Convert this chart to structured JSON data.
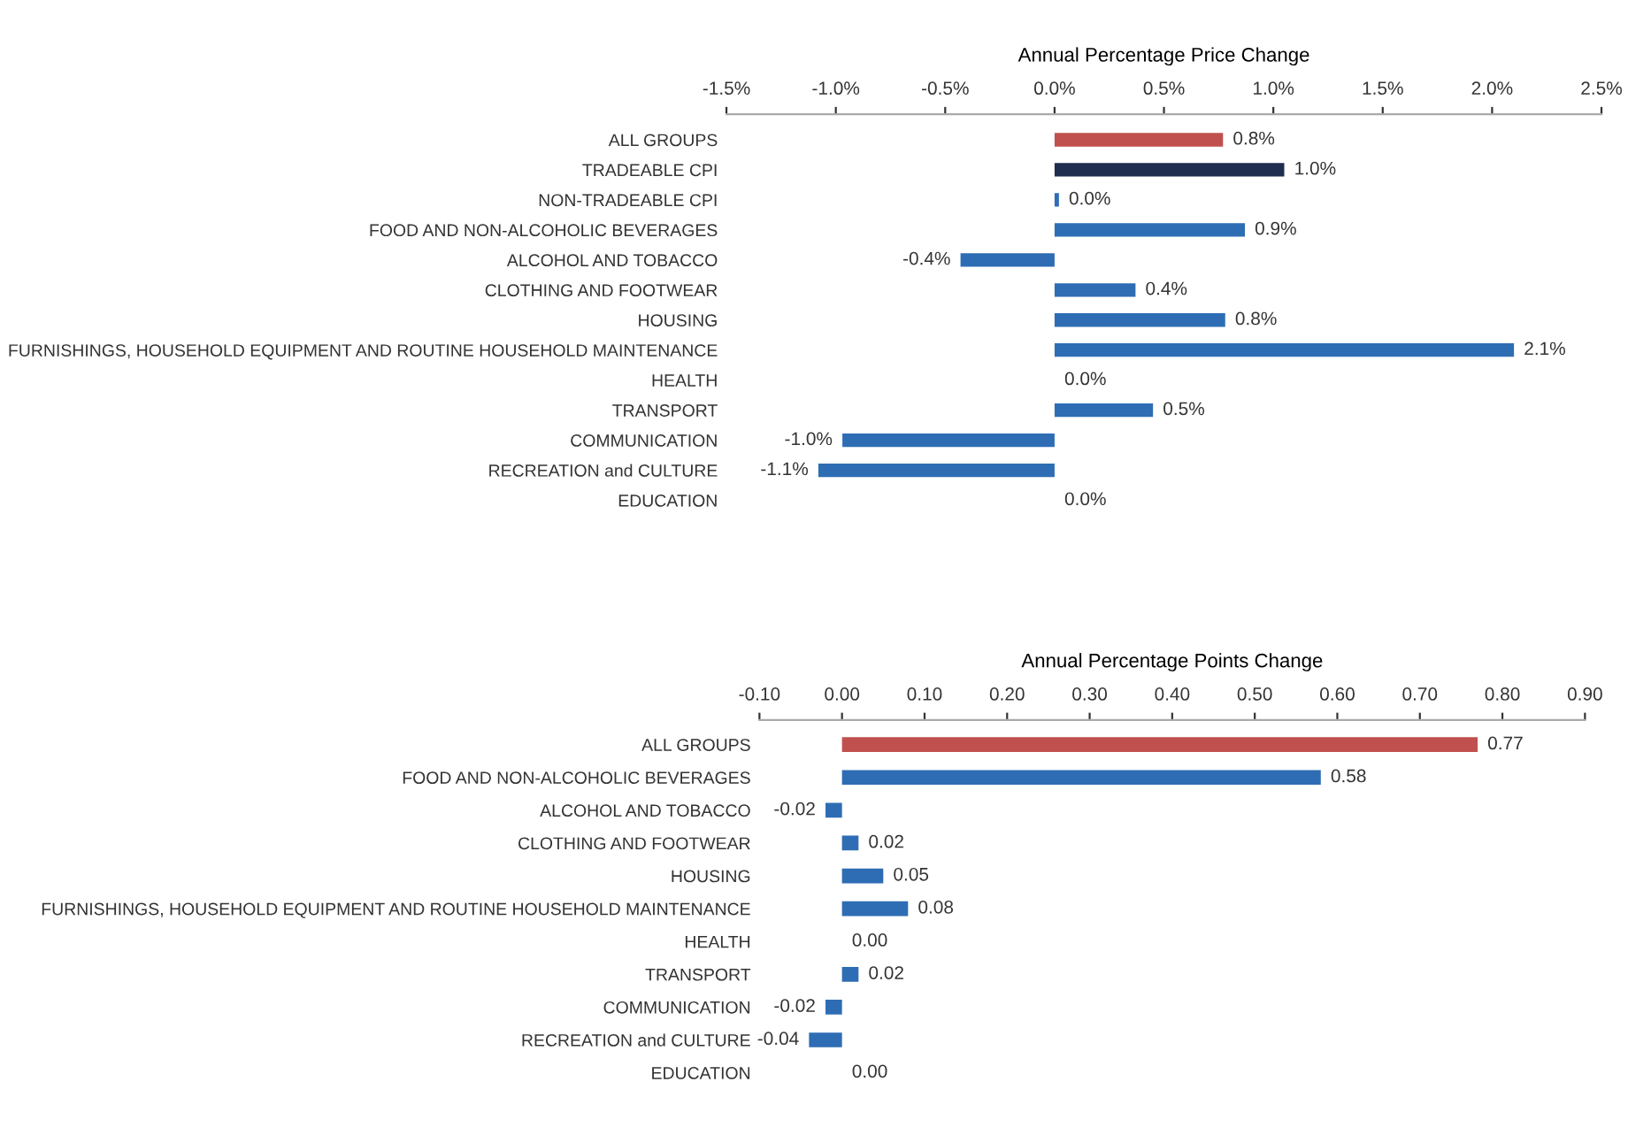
{
  "chart_data": [
    {
      "type": "bar",
      "orientation": "horizontal",
      "xlabel": "Annual Percentage Price Change",
      "categories": [
        "ALL GROUPS",
        "TRADEABLE CPI",
        "NON-TRADEABLE CPI",
        "FOOD AND NON-ALCOHOLIC BEVERAGES",
        "ALCOHOL AND TOBACCO",
        "CLOTHING AND FOOTWEAR",
        "HOUSING",
        "FURNISHINGS, HOUSEHOLD EQUIPMENT AND ROUTINE HOUSEHOLD MAINTENANCE",
        "HEALTH",
        "TRANSPORT",
        "COMMUNICATION",
        "RECREATION and CULTURE",
        "EDUCATION"
      ],
      "values": [
        0.77,
        1.05,
        0.02,
        0.87,
        -0.43,
        0.37,
        0.78,
        2.1,
        0.0,
        0.45,
        -0.97,
        -1.08,
        0.0
      ],
      "colors": [
        "#c0504d",
        "#1f2d4e",
        "#2e6db4",
        "#2e6db4",
        "#2e6db4",
        "#2e6db4",
        "#2e6db4",
        "#2e6db4",
        "#2e6db4",
        "#2e6db4",
        "#2e6db4",
        "#2e6db4",
        "#2e6db4"
      ],
      "value_labels": [
        "0.8%",
        "1.0%",
        "0.0%",
        "0.9%",
        "-0.4%",
        "0.4%",
        "0.8%",
        "2.1%",
        "0.0%",
        "0.5%",
        "-1.0%",
        "-1.1%",
        "0.0%"
      ],
      "xlim": [
        -1.5,
        2.5
      ],
      "xticks": [
        {
          "value": -1.5,
          "label": "-1.5%"
        },
        {
          "value": -1.0,
          "label": "-1.0%"
        },
        {
          "value": -0.5,
          "label": "-0.5%"
        },
        {
          "value": 0,
          "label": "0.0%"
        },
        {
          "value": 0.5,
          "label": "0.5%"
        },
        {
          "value": 1.0,
          "label": "1.0%"
        },
        {
          "value": 1.5,
          "label": "1.5%"
        },
        {
          "value": 2.0,
          "label": "2.0%"
        },
        {
          "value": 2.5,
          "label": "2.5%"
        }
      ],
      "grid": false,
      "legend": false
    },
    {
      "type": "bar",
      "orientation": "horizontal",
      "xlabel": "Annual Percentage Points Change",
      "categories": [
        "ALL GROUPS",
        "FOOD AND NON-ALCOHOLIC BEVERAGES",
        "ALCOHOL AND TOBACCO",
        "CLOTHING AND FOOTWEAR",
        "HOUSING",
        "FURNISHINGS, HOUSEHOLD EQUIPMENT AND ROUTINE HOUSEHOLD MAINTENANCE",
        "HEALTH",
        "TRANSPORT",
        "COMMUNICATION",
        "RECREATION and CULTURE",
        "EDUCATION"
      ],
      "values": [
        0.77,
        0.58,
        -0.02,
        0.02,
        0.05,
        0.08,
        0.0,
        0.02,
        -0.02,
        -0.04,
        0.0
      ],
      "colors": [
        "#c0504d",
        "#2e6db4",
        "#2e6db4",
        "#2e6db4",
        "#2e6db4",
        "#2e6db4",
        "#2e6db4",
        "#2e6db4",
        "#2e6db4",
        "#2e6db4",
        "#2e6db4"
      ],
      "value_labels": [
        "0.77",
        "0.58",
        "-0.02",
        "0.02",
        "0.05",
        "0.08",
        "0.00",
        "0.02",
        "-0.02",
        "-0.04",
        "0.00"
      ],
      "xlim": [
        -0.1,
        0.9
      ],
      "xticks": [
        {
          "value": -0.1,
          "label": "-0.10"
        },
        {
          "value": 0,
          "label": "0.00"
        },
        {
          "value": 0.1,
          "label": "0.10"
        },
        {
          "value": 0.2,
          "label": "0.20"
        },
        {
          "value": 0.3,
          "label": "0.30"
        },
        {
          "value": 0.4,
          "label": "0.40"
        },
        {
          "value": 0.5,
          "label": "0.50"
        },
        {
          "value": 0.6,
          "label": "0.60"
        },
        {
          "value": 0.7,
          "label": "0.70"
        },
        {
          "value": 0.8,
          "label": "0.80"
        },
        {
          "value": 0.9,
          "label": "0.90"
        }
      ],
      "grid": false,
      "legend": false
    }
  ]
}
